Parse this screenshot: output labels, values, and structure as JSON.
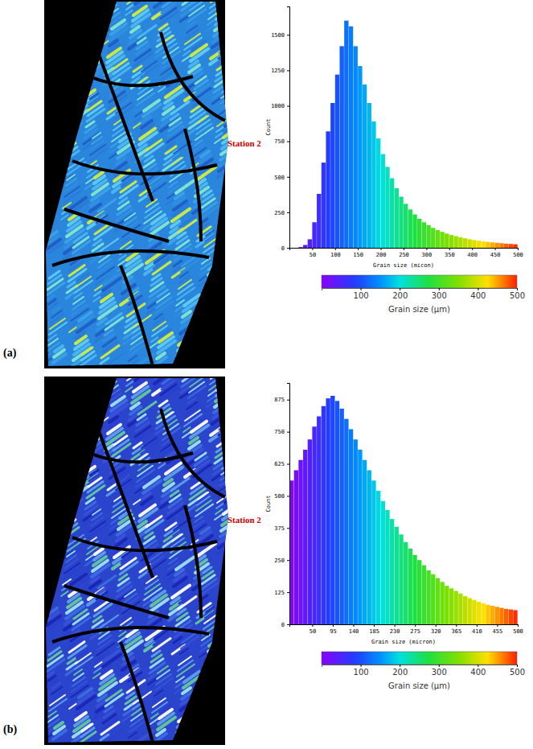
{
  "chart_data": [
    {
      "type": "histogram",
      "panel_label": "(a)",
      "annotations": [
        {
          "text": "Station 2"
        }
      ],
      "x_label": "Grain size (micon)",
      "y_label": "Count",
      "bins": [
        0,
        10,
        20,
        30,
        40,
        50,
        60,
        70,
        80,
        90,
        100,
        110,
        120,
        130,
        140,
        150,
        160,
        170,
        180,
        190,
        200,
        210,
        220,
        230,
        240,
        250,
        260,
        270,
        280,
        290,
        300,
        310,
        320,
        330,
        340,
        350,
        360,
        370,
        380,
        390,
        400,
        410,
        420,
        430,
        440,
        450,
        460,
        470,
        480,
        490,
        500
      ],
      "values": [
        0,
        0,
        5,
        20,
        60,
        180,
        380,
        600,
        820,
        1020,
        1220,
        1420,
        1600,
        1560,
        1420,
        1280,
        1150,
        1020,
        890,
        770,
        660,
        570,
        490,
        420,
        360,
        310,
        270,
        235,
        205,
        180,
        160,
        140,
        125,
        112,
        100,
        90,
        82,
        74,
        67,
        60,
        55,
        50,
        45,
        41,
        38,
        35,
        32,
        29,
        27,
        25
      ],
      "xlim": [
        0,
        500
      ],
      "xticks": [
        50,
        100,
        150,
        200,
        250,
        300,
        350,
        400,
        450,
        500
      ],
      "ylim": [
        0,
        1700
      ],
      "yticks": [
        0,
        250,
        500,
        750,
        1000,
        1250,
        1500
      ],
      "colorbar": {
        "range": [
          0,
          500
        ],
        "ticks": [
          100,
          200,
          300,
          400,
          500
        ],
        "label": "Grain size (µm)"
      }
    },
    {
      "type": "histogram",
      "panel_label": "(b)",
      "annotations": [
        {
          "text": "Station 2"
        }
      ],
      "x_label": "Grain size (micron)",
      "y_label": "Count",
      "bins": [
        0,
        10,
        20,
        30,
        40,
        50,
        60,
        70,
        80,
        90,
        100,
        110,
        120,
        130,
        140,
        150,
        160,
        170,
        180,
        190,
        200,
        210,
        220,
        230,
        240,
        250,
        260,
        270,
        280,
        290,
        300,
        310,
        320,
        330,
        340,
        350,
        360,
        370,
        380,
        390,
        400,
        410,
        420,
        430,
        440,
        450,
        460,
        470,
        480,
        490,
        500
      ],
      "values": [
        560,
        600,
        640,
        680,
        720,
        770,
        810,
        850,
        880,
        890,
        870,
        840,
        800,
        760,
        720,
        680,
        640,
        600,
        560,
        520,
        480,
        445,
        410,
        380,
        350,
        320,
        295,
        270,
        250,
        230,
        210,
        195,
        180,
        165,
        150,
        140,
        130,
        120,
        110,
        102,
        95,
        88,
        82,
        76,
        72,
        68,
        64,
        60,
        58,
        55
      ],
      "xlim": [
        0,
        500
      ],
      "xticks": [
        50,
        95,
        140,
        185,
        230,
        275,
        320,
        365,
        410,
        455,
        500
      ],
      "ylim": [
        0,
        940
      ],
      "yticks": [
        0,
        125,
        250,
        375,
        500,
        625,
        750,
        875
      ],
      "colorbar": {
        "range": [
          0,
          500
        ],
        "ticks": [
          100,
          200,
          300,
          400,
          500
        ],
        "label": "Grain size (µm)"
      }
    }
  ]
}
